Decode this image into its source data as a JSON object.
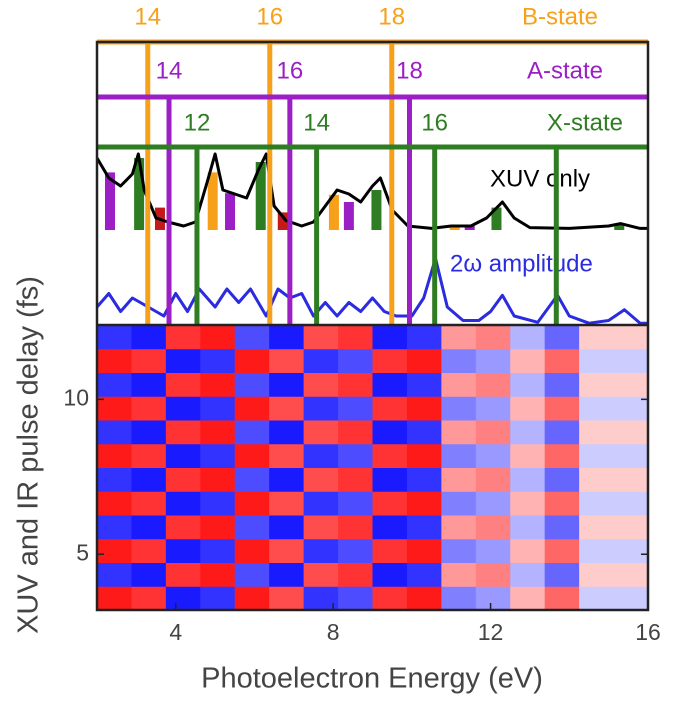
{
  "chart_data": {
    "type": "heatmap",
    "xlabel": "Photoelectron Energy (eV)",
    "ylabel": "XUV and IR pulse delay (fs)",
    "xlim": [
      2,
      16
    ],
    "xticks": [
      4,
      8,
      12,
      16
    ],
    "ylim": [
      3.2,
      12.4
    ],
    "yticks": [
      5,
      10
    ],
    "colormap": [
      "#0000ff",
      "#ffffff",
      "#ff0000"
    ],
    "z": [
      [
        0.9,
        0.8,
        -0.9,
        -0.8,
        0.9,
        0.7,
        -0.8,
        -0.7,
        0.8,
        0.9,
        -0.5,
        -0.4,
        0.3,
        0.6,
        -0.2,
        -0.2
      ],
      [
        -0.8,
        -0.9,
        0.8,
        0.9,
        -0.7,
        -0.9,
        0.7,
        0.8,
        -0.9,
        -0.8,
        0.4,
        0.5,
        -0.3,
        -0.6,
        0.2,
        0.2
      ],
      [
        0.9,
        0.8,
        -0.9,
        -0.8,
        0.9,
        0.7,
        -0.8,
        -0.7,
        0.8,
        0.9,
        -0.5,
        -0.4,
        0.3,
        0.6,
        -0.2,
        -0.2
      ],
      [
        -0.8,
        -0.9,
        0.8,
        0.9,
        -0.7,
        -0.9,
        0.7,
        0.8,
        -0.9,
        -0.8,
        0.4,
        0.5,
        -0.3,
        -0.6,
        0.2,
        0.2
      ],
      [
        0.9,
        0.8,
        -0.9,
        -0.8,
        0.9,
        0.7,
        -0.8,
        -0.7,
        0.8,
        0.9,
        -0.5,
        -0.4,
        0.3,
        0.6,
        -0.2,
        -0.2
      ],
      [
        -0.8,
        -0.9,
        0.8,
        0.9,
        -0.7,
        -0.9,
        0.7,
        0.8,
        -0.9,
        -0.8,
        0.4,
        0.5,
        -0.3,
        -0.6,
        0.2,
        0.2
      ],
      [
        0.9,
        0.8,
        -0.9,
        -0.8,
        0.9,
        0.7,
        -0.8,
        -0.7,
        0.8,
        0.9,
        -0.5,
        -0.4,
        0.3,
        0.6,
        -0.2,
        -0.2
      ],
      [
        -0.8,
        -0.9,
        0.8,
        0.9,
        -0.7,
        -0.9,
        0.7,
        0.8,
        -0.9,
        -0.8,
        0.4,
        0.5,
        -0.3,
        -0.6,
        0.2,
        0.2
      ],
      [
        0.9,
        0.8,
        -0.9,
        -0.8,
        0.9,
        0.7,
        -0.8,
        -0.7,
        0.8,
        0.9,
        -0.5,
        -0.4,
        0.3,
        0.6,
        -0.2,
        -0.2
      ],
      [
        -0.8,
        -0.9,
        0.8,
        0.9,
        -0.7,
        -0.9,
        0.7,
        0.8,
        -0.9,
        -0.8,
        0.4,
        0.5,
        -0.3,
        -0.6,
        0.2,
        0.2
      ],
      [
        0.9,
        0.8,
        -0.9,
        -0.8,
        0.9,
        0.7,
        -0.8,
        -0.7,
        0.8,
        0.9,
        -0.5,
        -0.4,
        0.3,
        0.6,
        -0.2,
        -0.2
      ],
      [
        -0.8,
        -0.9,
        0.8,
        0.9,
        -0.7,
        -0.9,
        0.7,
        0.8,
        -0.9,
        -0.8,
        0.4,
        0.5,
        -0.3,
        -0.6,
        0.2,
        0.2
      ]
    ],
    "harmonics": [
      {
        "name": "B-state",
        "color": "#f7a11a",
        "labels": [
          14,
          16,
          18
        ],
        "energies": [
          3.29,
          6.39,
          9.49
        ]
      },
      {
        "name": "A-state",
        "color": "#9b1fc4",
        "labels": [
          14,
          16,
          18
        ],
        "energies": [
          3.83,
          6.9,
          9.94
        ]
      },
      {
        "name": "X-state",
        "color": "#2e7d22",
        "labels": [
          12,
          14,
          16,
          null
        ],
        "energies": [
          4.54,
          7.58,
          10.58,
          13.67
        ]
      }
    ],
    "sticks": {
      "x": [
        2.33,
        3.07,
        3.6,
        4.94,
        5.38,
        6.16,
        6.72,
        8.02,
        8.4,
        9.1,
        11.09,
        11.47,
        12.15,
        15.27
      ],
      "values": [
        0.72,
        0.9,
        0.28,
        0.72,
        0.46,
        0.85,
        0.22,
        0.44,
        0.35,
        0.5,
        0.05,
        0.05,
        0.28,
        0.08
      ],
      "colors": [
        "#9b1fc4",
        "#2e7d22",
        "#c41a1a",
        "#f7a11a",
        "#9b1fc4",
        "#2e7d22",
        "#c41a1a",
        "#f7a11a",
        "#9b1fc4",
        "#2e7d22",
        "#f7a11a",
        "#9b1fc4",
        "#2e7d22",
        "#2e7d22"
      ]
    },
    "spectrum": {
      "name": "XUV only",
      "color": "#000000",
      "x": [
        2.0,
        2.3,
        2.6,
        2.9,
        3.05,
        3.2,
        3.5,
        3.8,
        4.2,
        4.5,
        4.8,
        5.0,
        5.2,
        5.5,
        5.8,
        6.1,
        6.3,
        6.5,
        6.8,
        7.2,
        7.5,
        7.8,
        8.1,
        8.4,
        8.7,
        9.0,
        9.2,
        9.5,
        9.9,
        10.5,
        11.0,
        11.5,
        11.9,
        12.3,
        12.6,
        13.0,
        14.0,
        15.0,
        15.3,
        15.8,
        16.0
      ],
      "values": [
        0.9,
        0.65,
        0.55,
        0.7,
        0.95,
        0.5,
        0.15,
        0.1,
        0.05,
        0.1,
        0.6,
        0.95,
        0.5,
        0.45,
        0.4,
        0.75,
        0.95,
        0.3,
        0.12,
        0.05,
        0.1,
        0.3,
        0.5,
        0.45,
        0.35,
        0.55,
        0.65,
        0.25,
        0.05,
        0.02,
        0.05,
        0.05,
        0.15,
        0.35,
        0.15,
        0.03,
        0.02,
        0.05,
        0.08,
        0.02,
        0.02
      ]
    },
    "amplitude": {
      "name": "2ω amplitude",
      "color": "#2b2bdf",
      "x": [
        2.0,
        2.3,
        2.6,
        2.9,
        3.3,
        3.7,
        4.0,
        4.3,
        4.6,
        5.0,
        5.3,
        5.6,
        5.9,
        6.3,
        6.6,
        6.9,
        7.2,
        7.5,
        7.8,
        8.1,
        8.4,
        8.7,
        9.0,
        9.3,
        9.6,
        10.0,
        10.3,
        10.6,
        10.9,
        11.3,
        11.7,
        12.0,
        12.3,
        12.6,
        13.2,
        13.7,
        14.0,
        14.5,
        15.0,
        15.4,
        15.8,
        16.0
      ],
      "values": [
        0.2,
        0.35,
        0.15,
        0.3,
        0.2,
        0.1,
        0.35,
        0.15,
        0.4,
        0.2,
        0.4,
        0.25,
        0.4,
        0.1,
        0.4,
        0.3,
        0.35,
        0.1,
        0.25,
        0.1,
        0.25,
        0.15,
        0.3,
        0.15,
        0.1,
        0.1,
        0.3,
        0.74,
        0.2,
        0.05,
        0.05,
        0.15,
        0.33,
        0.1,
        0.03,
        0.33,
        0.1,
        0.02,
        0.05,
        0.17,
        0.02,
        0.02
      ]
    }
  }
}
